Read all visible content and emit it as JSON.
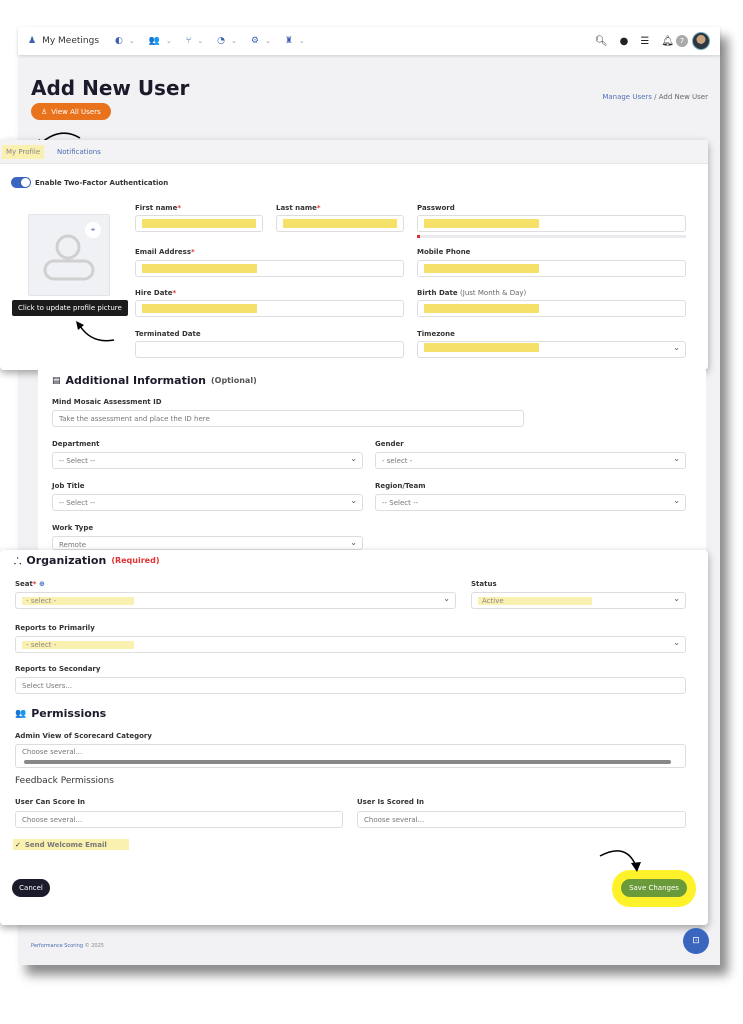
{
  "topbar": {
    "app": "My Meetings",
    "badge": "7",
    "icons": [
      "meetings-icon",
      "toggle-icon",
      "users-icon",
      "hierarchy-icon",
      "gauge-icon",
      "gear-icon",
      "trophy-icon",
      "search-icon",
      "lightbulb-icon",
      "checklist-icon",
      "bell-icon"
    ]
  },
  "header": {
    "title": "Add New User",
    "view_all": "View All Users",
    "breadcrumb": [
      "Manage Users",
      "Add New User"
    ]
  },
  "tabs": [
    {
      "label": "My Profile",
      "active": true
    },
    {
      "label": "Notifications"
    }
  ],
  "profile": {
    "two_factor": "Enable Two-Factor Authentication",
    "two_factor_on": true,
    "tooltip": "Click to update profile picture",
    "first_name": "First name",
    "last_name": "Last name",
    "password": "Password",
    "email": "Email Address",
    "mobile": "Mobile Phone",
    "hire_date": "Hire Date",
    "birth_date": "Birth Date",
    "birth_hint": "(Just Month & Day)",
    "terminated": "Terminated Date",
    "timezone": "Timezone",
    "required_mark": "*"
  },
  "additional": {
    "title": "Additional Information",
    "optional": "(Optional)",
    "mind_label": "Mind Mosaic Assessment ID",
    "mind_placeholder": "Take the assessment and place the ID here",
    "department": "Department",
    "department_val": "-- Select --",
    "gender": "Gender",
    "gender_val": "- select -",
    "job": "Job Title",
    "job_val": "-- Select --",
    "region": "Region/Team",
    "region_val": "-- Select --",
    "work": "Work Type",
    "work_val": "Remote"
  },
  "organization": {
    "title": "Organization",
    "required": "(Required)",
    "seat": "Seat",
    "seat_val": "- select -",
    "status": "Status",
    "status_val": "Active",
    "primary": "Reports to Primarily",
    "primary_val": "- select -",
    "secondary": "Reports to Secondary",
    "secondary_ph": "Select Users..."
  },
  "permissions": {
    "title": "Permissions",
    "admin_view": "Admin View of Scorecard Category",
    "admin_ph": "Choose several...",
    "feedback": "Feedback Permissions",
    "can_score": "User Can Score In",
    "can_score_ph": "Choose several...",
    "is_scored": "User Is Scored In",
    "is_scored_ph": "Choose several...",
    "welcome": "Send Welcome Email",
    "welcome_checked": true
  },
  "actions": {
    "cancel": "Cancel",
    "save": "Save Changes"
  },
  "footer": {
    "brand": "Performance Scoring",
    "year": "© 2025"
  },
  "colors": {
    "accent": "#e8731c",
    "save": "#6a9a3a",
    "highlight": "#fff22a",
    "link": "#5170b8"
  }
}
